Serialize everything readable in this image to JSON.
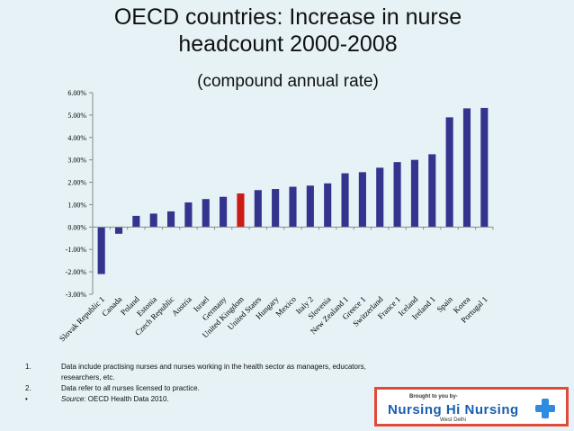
{
  "title_line1": "OECD countries: Increase in nurse",
  "title_line2": "headcount 2000-2008",
  "subtitle": "(compound annual rate)",
  "chart_data": {
    "type": "bar",
    "categories": [
      "Slovak Republic 1",
      "Canada",
      "Poland",
      "Estonia",
      "Czech Republic",
      "Austria",
      "Israel",
      "Germany",
      "United Kingdom",
      "United States",
      "Hungary",
      "Mexico",
      "Italy 2",
      "Slovenia",
      "New Zealand 1",
      "Greece 1",
      "Switzerland",
      "France 1",
      "Iceland",
      "Ireland 1",
      "Spain",
      "Korea",
      "Portugal 1"
    ],
    "values": [
      -2.1,
      -0.3,
      0.5,
      0.6,
      0.7,
      1.1,
      1.25,
      1.35,
      1.5,
      1.65,
      1.7,
      1.8,
      1.85,
      1.95,
      2.4,
      2.45,
      2.65,
      2.9,
      3.0,
      3.25,
      4.9,
      5.3,
      5.32
    ],
    "highlight": "United Kingdom",
    "ylim": [
      -3,
      6
    ],
    "yticks": [
      -3,
      -2,
      -1,
      0,
      1,
      2,
      3,
      4,
      5,
      6
    ],
    "ytick_labels": [
      "-3.00%",
      "-2.00%",
      "-1.00%",
      "0.00%",
      "1.00%",
      "2.00%",
      "3.00%",
      "4.00%",
      "5.00%",
      "6.00%"
    ],
    "xlabel": "",
    "ylabel": "",
    "colors": {
      "bar": "#34348f",
      "highlight": "#cc1a14",
      "axis": "#8a8a8a"
    }
  },
  "notes": [
    {
      "marker": "1.",
      "text": "Data include practising nurses and nurses working in the health sector as managers, educators, researchers, etc."
    },
    {
      "marker": "2.",
      "text": "Data refer to all nurses licensed to practice."
    },
    {
      "marker": "•",
      "label": "Source:",
      "text": " OECD Health Data 2010."
    }
  ],
  "banner": {
    "tagline": "Brought to you by-",
    "brand": "Nursing Hi Nursing",
    "location": "West Delhi",
    "icon": "medical-cross-icon",
    "colors": {
      "border": "#e04a3a",
      "brand": "#1a5fb0",
      "cross": "#2f8be0"
    }
  }
}
